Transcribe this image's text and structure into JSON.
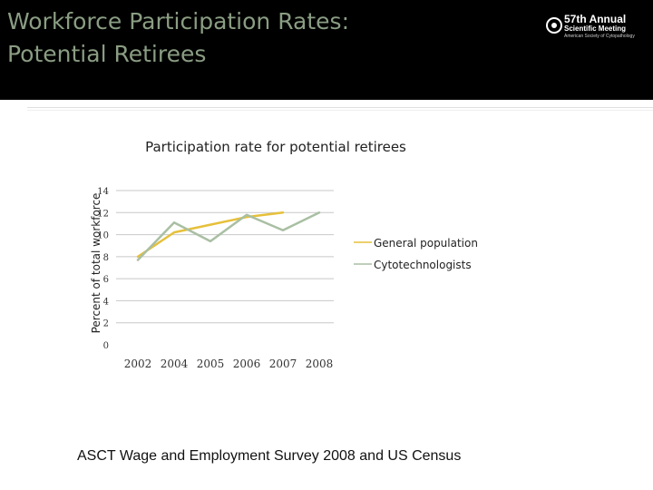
{
  "slide": {
    "title": "Workforce Participation Rates:\nPotential Retirees",
    "logo": {
      "line1": "57th Annual",
      "line2": "Scientific Meeting",
      "line3": "American Society of Cytopathology"
    },
    "source": "ASCT Wage and Employment Survey 2008 and  US Census"
  },
  "chart_data": {
    "type": "line",
    "title": "Participation rate for potential retirees",
    "xlabel": "",
    "ylabel": "Percent of total workforce",
    "categories": [
      "2002",
      "2004",
      "2005",
      "2006",
      "2007",
      "2008"
    ],
    "ylim": [
      0,
      14
    ],
    "yticks": [
      0,
      2,
      4,
      6,
      8,
      10,
      12,
      14
    ],
    "grid": true,
    "legend_position": "right",
    "series": [
      {
        "name": "General population",
        "color": "#e6c03a",
        "values": [
          8.0,
          10.2,
          10.9,
          11.6,
          12.0,
          null
        ]
      },
      {
        "name": "Cytotechnologists",
        "color": "#a9bfa3",
        "values": [
          7.7,
          11.1,
          9.4,
          11.8,
          10.4,
          12.0
        ]
      }
    ]
  }
}
